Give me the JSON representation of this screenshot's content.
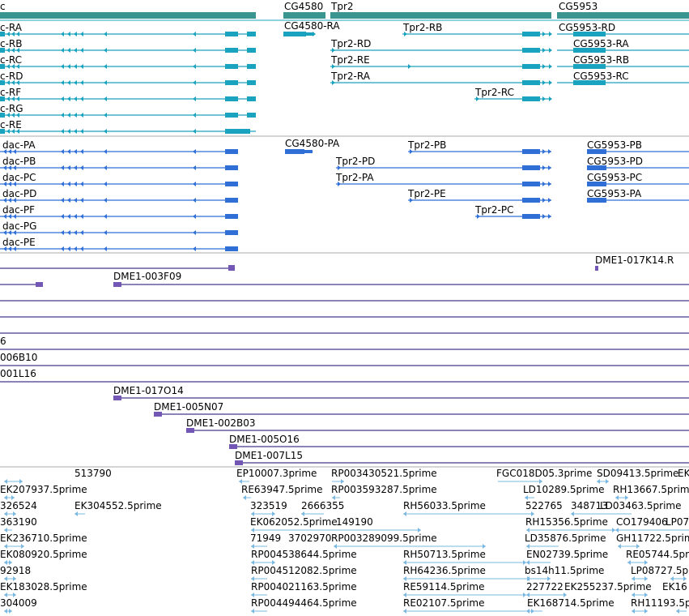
{
  "colors": {
    "gene_summary": "#3a9490",
    "transcript": "#1aa3bf",
    "cds": "#2f6fd6",
    "clone": "#7257b5",
    "clone_line": "#46388d",
    "est": "#7db8e0",
    "separator": "#a9a9a9"
  },
  "gene_labels": [
    "c",
    "CG4580",
    "Tpr2",
    "CG5953"
  ],
  "transcript_labels": [
    "c-RA",
    "CG4580-RA",
    "Tpr2-RB",
    "CG5953-RD",
    "c-RB",
    "Tpr2-RD",
    "CG5953-RA",
    "c-RC",
    "Tpr2-RE",
    "CG5953-RB",
    "c-RD",
    "Tpr2-RA",
    "CG5953-RC",
    "c-RF",
    "Tpr2-RC",
    "c-RG",
    "c-RE"
  ],
  "cds_labels": [
    "dac-PA",
    "CG4580-PA",
    "Tpr2-PB",
    "CG5953-PB",
    "dac-PB",
    "Tpr2-PD",
    "CG5953-PD",
    "dac-PC",
    "Tpr2-PA",
    "CG5953-PC",
    "dac-PD",
    "Tpr2-PE",
    "CG5953-PA",
    "dac-PF",
    "Tpr2-PC",
    "dac-PG",
    "dac-PE"
  ],
  "clone_labels": [
    "DME1-017K14.R",
    "DME1-003F09",
    "6",
    "006B10",
    "001L16",
    "DME1-017O14",
    "DME1-005N07",
    "DME1-002B03",
    "DME1-005O16",
    "DME1-007L15"
  ],
  "est_labels": [
    "513790",
    "EP10007.3prime",
    "RP003430521.5prime",
    "FGC018D05.3prime",
    "SD09413.5prime",
    "EK",
    "EK207937.5prime",
    "RE63947.5prime",
    "RP003593287.5prime",
    "LD10289.5prime",
    "RH13667.5prime",
    "326524",
    "EK304552.5prime",
    "323519",
    "2666355",
    "RH56033.5prime",
    "522765",
    "348713",
    "LD03463.5prime",
    "363190",
    "EK062052.5prime",
    "149190",
    "RH15356.5prime",
    "CO179406",
    "LP07",
    "EK236710.5prime",
    "71949",
    "3702970",
    "RP003289099.5prime",
    "LD35876.5prime",
    "GH11722.5prime",
    "EK080920.5prime",
    "RP004538644.5prime",
    "RH50713.5prime",
    "EN02739.5prime",
    "RE05744.5prime",
    "92918",
    "RP004512082.5prime",
    "RH64236.5prime",
    "bs14h11.5prime",
    "LP08727.5prime",
    "EK183028.5prime",
    "RP004021163.5prime",
    "RE59114.5prime",
    "227722",
    "EK255237.5prime",
    "EK16",
    "304009",
    "RP004494464.5prime",
    "RE02107.5prime",
    "EK168714.5prime",
    "RH11193.5prime"
  ]
}
